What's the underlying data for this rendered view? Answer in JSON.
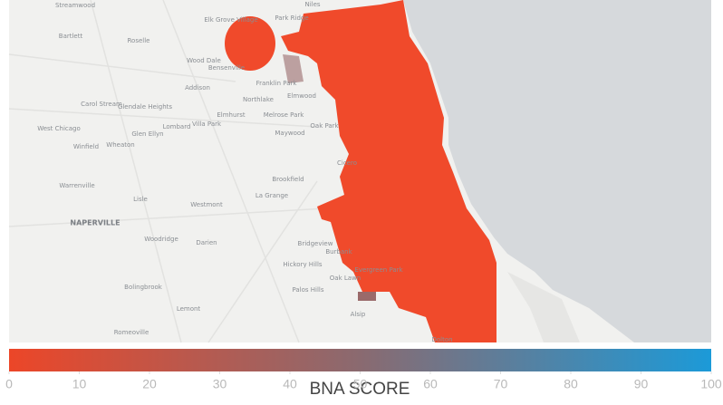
{
  "map": {
    "places": [
      "Streamwood",
      "Bartlett",
      "Roselle",
      "Wood Dale",
      "Bensenville",
      "Addison",
      "Franklin Park",
      "Northlake",
      "Elmwood",
      "Carol Stream",
      "Glendale Heights",
      "Lombard",
      "Villa Park",
      "Elmhurst",
      "Melrose Park",
      "Oak Park",
      "Maywood",
      "West Chicago",
      "Glen Ellyn",
      "Winfield",
      "Wheaton",
      "Cicero",
      "Brookfield",
      "Warrenville",
      "Lisle",
      "Westmont",
      "La Grange",
      "NAPERVILLE",
      "Woodridge",
      "Darien",
      "Bridgeview",
      "Burbank",
      "Hickory Hills",
      "Evergreen Park",
      "Oak Lawn",
      "Bolingbrook",
      "Palos Hills",
      "Lemont",
      "Alsip",
      "Romeoville",
      "Dolton",
      "Niles",
      "Park Ridge",
      "Elk Grove Village"
    ]
  },
  "legend": {
    "title": "BNA SCORE",
    "range": [
      0,
      100
    ],
    "ticks": [
      0,
      10,
      20,
      30,
      40,
      50,
      60,
      70,
      80,
      90,
      100
    ],
    "colors": [
      "#ec4628",
      "#1c9ad8"
    ]
  }
}
